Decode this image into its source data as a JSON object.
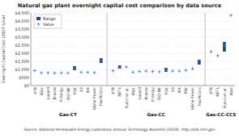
{
  "chart_data": {
    "type": "bar",
    "title": "Natural gas plant overnight capital cost comparison by data source",
    "source": "Source: National Renewable Energy Laboratory Annual Technology Baseline (2019), http://atb.nrel.gov",
    "y_label": "Overnight Capital Cost (2017 $/kw)",
    "ylim": [
      0,
      4500
    ],
    "yticks": [
      {
        "value": 0,
        "label": "$0"
      },
      {
        "value": 500,
        "label": "$500"
      },
      {
        "value": 1000,
        "label": "$1,000"
      },
      {
        "value": 1500,
        "label": "$1,500"
      },
      {
        "value": 2000,
        "label": "$2,000"
      },
      {
        "value": 2500,
        "label": "$2,500"
      },
      {
        "value": 3000,
        "label": "$3,000"
      },
      {
        "value": 3500,
        "label": "$3,500"
      },
      {
        "value": 4000,
        "label": "$4,000"
      },
      {
        "value": 4500,
        "label": "$4,500"
      }
    ],
    "grid": true,
    "legend": "top-left",
    "groups": [
      {
        "name": "Gas-CT",
        "categories": [
          "ATB",
          "B&V",
          "Lazard",
          "Brattle",
          "Entergy",
          "ISO-NE",
          "PGE",
          "E3",
          "IEA",
          "Idaho Power",
          "PacifiCorp"
        ]
      },
      {
        "name": "Gas-CC",
        "categories": [
          "ATB",
          "NETL",
          "Rubin et al.",
          "B&V",
          "Lazard",
          "Brattle",
          "Entergy",
          "ISO-NE",
          "PGE",
          "E3",
          "IEA",
          "PSE",
          "Idaho Power",
          "PacifiCorp"
        ]
      },
      {
        "name": "Gas-CC-CCS",
        "categories": [
          "ATB",
          "NETL",
          "Rubin et al.",
          "B&V"
        ]
      }
    ],
    "series": [
      {
        "name": "Range",
        "type": "range",
        "color": "#1f497d",
        "low": [
          null,
          null,
          null,
          null,
          null,
          null,
          950,
          null,
          null,
          null,
          1400,
          null,
          1050,
          null,
          null,
          null,
          null,
          null,
          null,
          850,
          null,
          null,
          null,
          null,
          1300,
          null,
          null,
          2100,
          null
        ],
        "high": [
          null,
          null,
          null,
          null,
          null,
          null,
          1200,
          null,
          null,
          null,
          1700,
          null,
          1250,
          null,
          null,
          null,
          null,
          null,
          null,
          1100,
          null,
          null,
          null,
          null,
          1600,
          null,
          null,
          2700,
          null
        ]
      },
      {
        "name": "Value",
        "type": "scatter",
        "marker": "plus",
        "color": "#4472c4",
        "values": [
          925,
          790,
          790,
          770,
          780,
          780,
          1050,
          830,
          820,
          800,
          1600,
          920,
          1150,
          1150,
          830,
          870,
          900,
          870,
          850,
          970,
          900,
          900,
          940,
          1040,
          1500,
          2100,
          1850,
          2500,
          4350
        ]
      }
    ]
  }
}
